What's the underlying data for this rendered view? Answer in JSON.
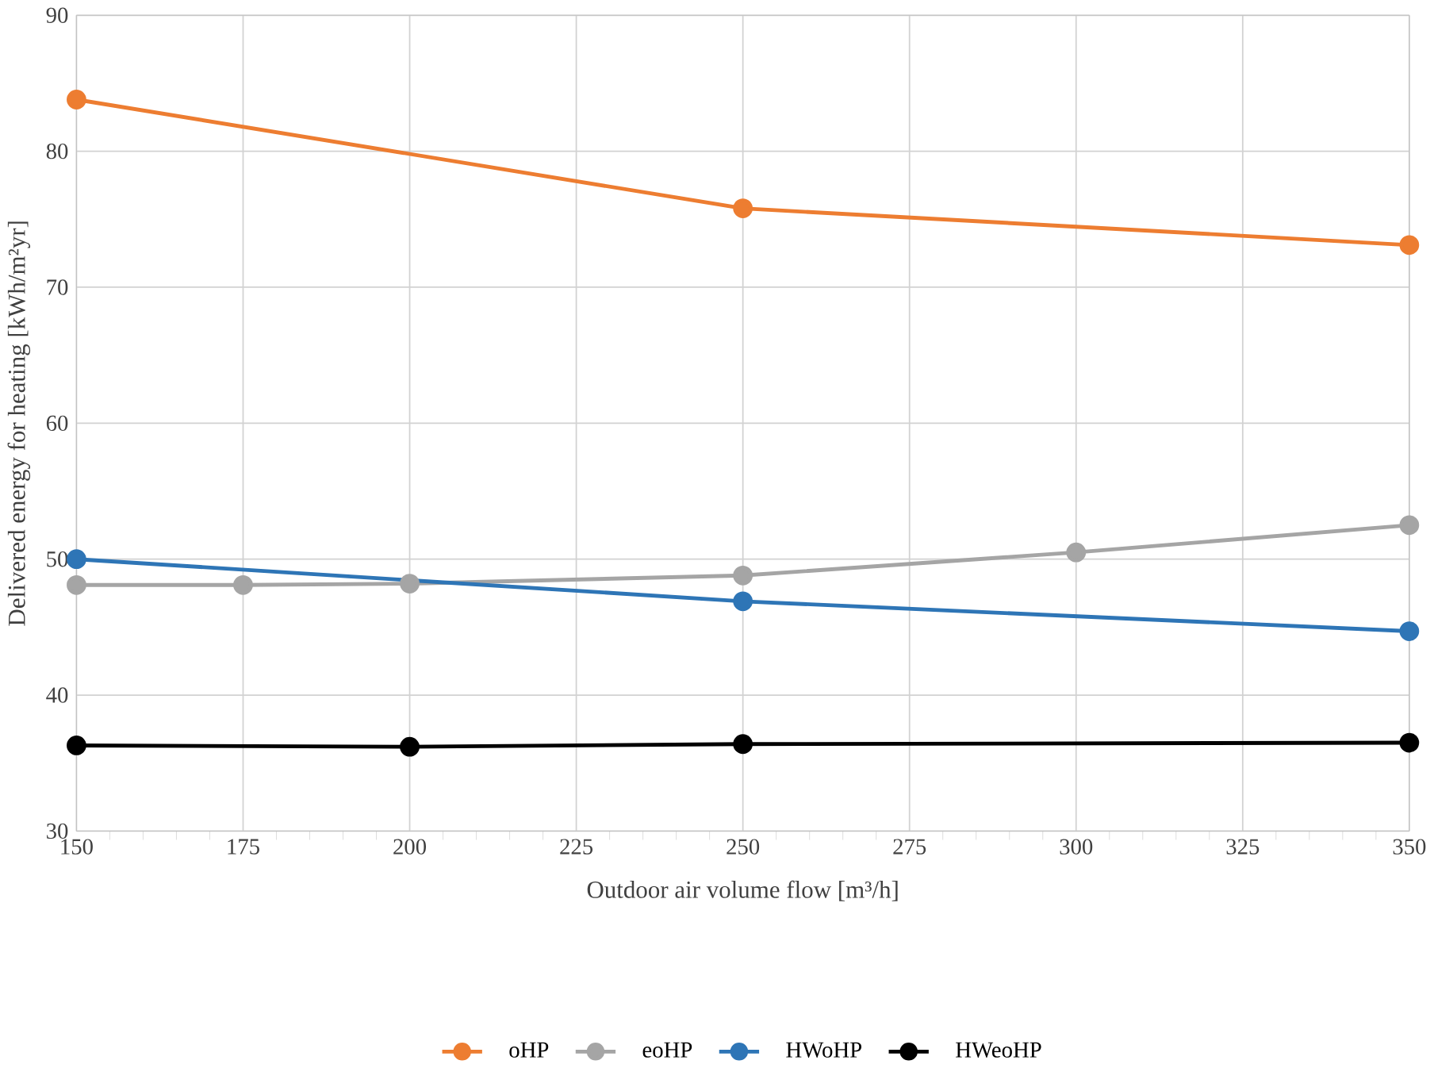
{
  "chart_data": {
    "type": "line",
    "xlabel": "Outdoor air volume flow [m³/h]",
    "ylabel": "Delivered energy for heating [kWh/m²yr]",
    "xlim": [
      150,
      350
    ],
    "xticks": [
      150,
      175,
      200,
      225,
      250,
      275,
      300,
      325,
      350
    ],
    "ylim": [
      30,
      90
    ],
    "yticks": [
      30,
      40,
      50,
      60,
      70,
      80,
      90
    ],
    "grid": true,
    "legend": "bottom",
    "marker": "circle",
    "line_style": "solid",
    "series": [
      {
        "name": "oHP",
        "color": "#ed7d31",
        "x": [
          150,
          250,
          350
        ],
        "values": [
          83.8,
          75.8,
          73.1
        ]
      },
      {
        "name": "eoHP",
        "color": "#a5a5a5",
        "x": [
          150,
          175,
          200,
          250,
          300,
          350
        ],
        "values": [
          48.1,
          48.1,
          48.2,
          48.8,
          50.5,
          52.5
        ]
      },
      {
        "name": "HWoHP",
        "color": "#2e75b6",
        "x": [
          150,
          250,
          350
        ],
        "values": [
          50.0,
          46.9,
          44.7
        ]
      },
      {
        "name": "HWeoHP",
        "color": "#000000",
        "x": [
          150,
          200,
          250,
          350
        ],
        "values": [
          36.3,
          36.2,
          36.4,
          36.5
        ]
      }
    ]
  }
}
